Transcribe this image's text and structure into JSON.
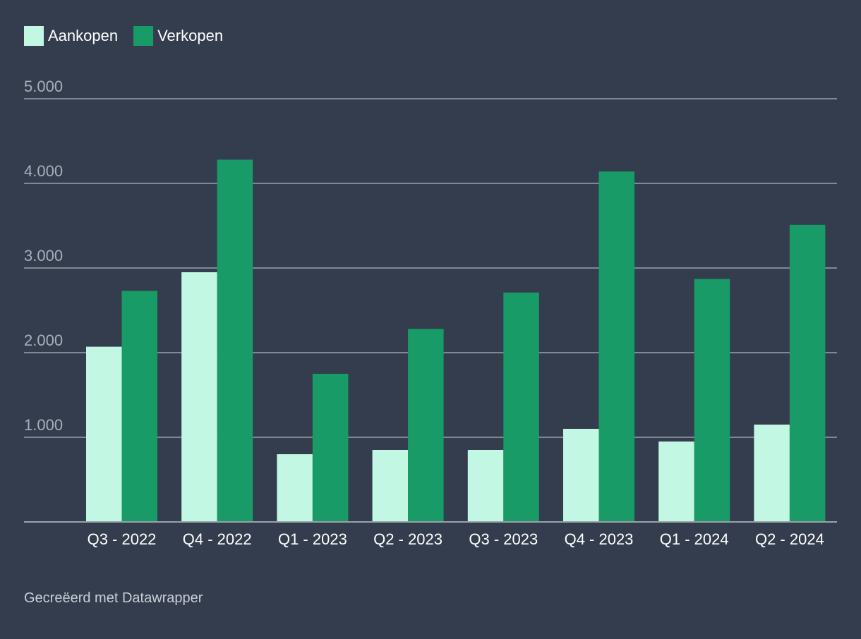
{
  "chart_data": {
    "type": "bar",
    "categories": [
      "Q3 - 2022",
      "Q4 - 2022",
      "Q1 - 2023",
      "Q2 - 2023",
      "Q3 - 2023",
      "Q4 - 2023",
      "Q1 - 2024",
      "Q2 - 2024"
    ],
    "series": [
      {
        "name": "Aankopen",
        "color": "#c2f8e3",
        "values": [
          2070,
          2950,
          800,
          850,
          850,
          1100,
          950,
          1150
        ]
      },
      {
        "name": "Verkopen",
        "color": "#199b67",
        "values": [
          2730,
          4280,
          1750,
          2280,
          2710,
          4140,
          2870,
          3510
        ]
      }
    ],
    "ylim": [
      0,
      5000
    ],
    "yticks": [
      1000,
      2000,
      3000,
      4000,
      5000
    ],
    "ytick_labels": [
      "1.000",
      "2.000",
      "3.000",
      "4.000",
      "5.000"
    ],
    "legend_position": "top-left",
    "grid": true,
    "title": "",
    "xlabel": "",
    "ylabel": ""
  },
  "footer": {
    "credit": "Gecreëerd met Datawrapper"
  }
}
